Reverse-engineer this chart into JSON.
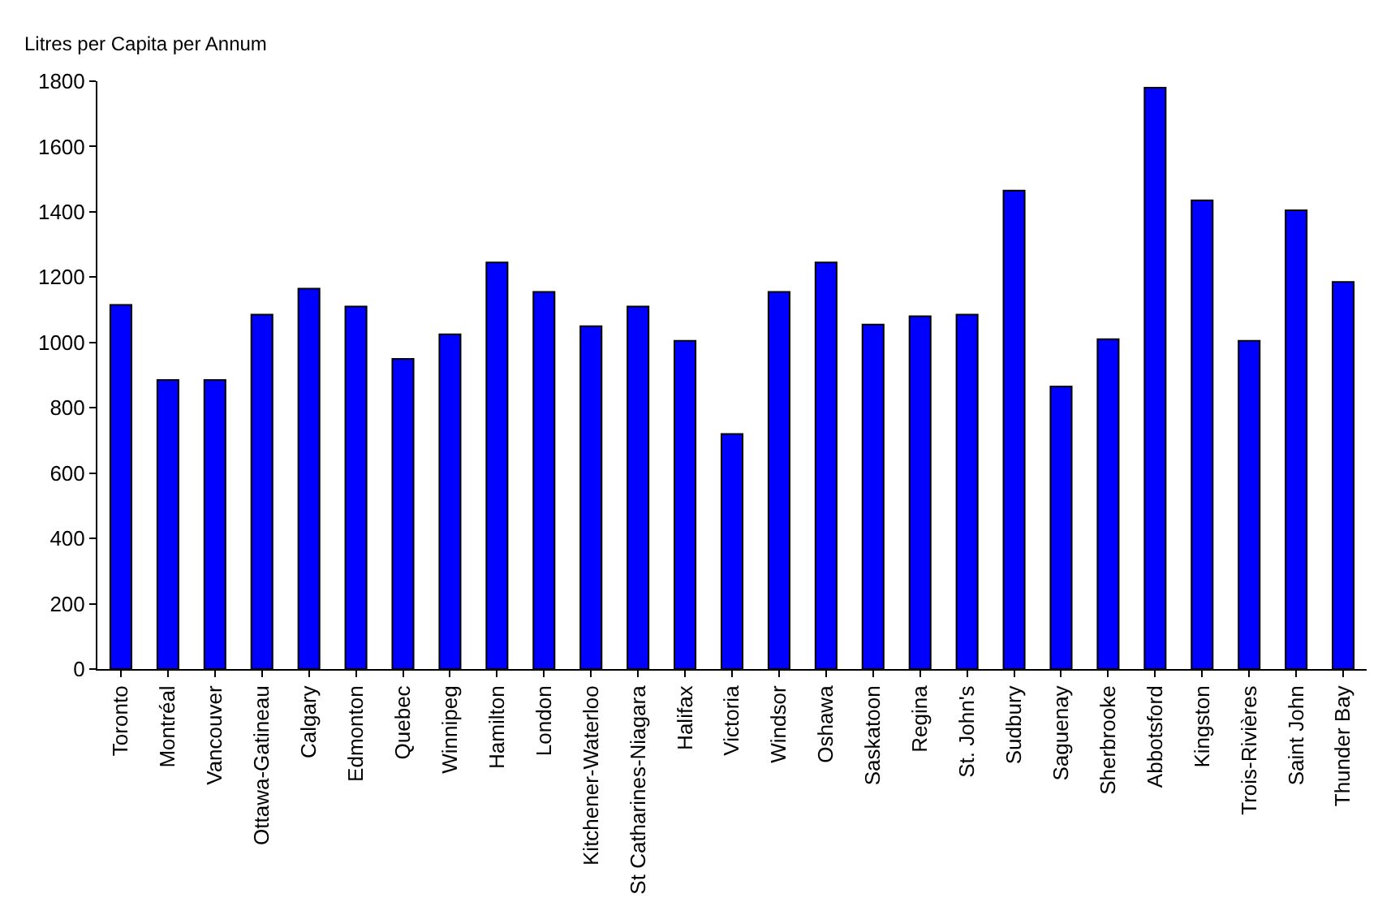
{
  "chart_data": {
    "type": "bar",
    "ylabel": "Litres per Capita per Annum",
    "categories": [
      "Toronto",
      "Montréal",
      "Vancouver",
      "Ottawa-Gatineau",
      "Calgary",
      "Edmonton",
      "Quebec",
      "Winnipeg",
      "Hamilton",
      "London",
      "Kitchener-Waterloo",
      "St Catharines-Niagara",
      "Halifax",
      "Victoria",
      "Windsor",
      "Oshawa",
      "Saskatoon",
      "Regina",
      "St. John's",
      "Sudbury",
      "Saguenay",
      "Sherbrooke",
      "Abbotsford",
      "Kingston",
      "Trois-Rivières",
      "Saint John",
      "Thunder Bay"
    ],
    "values": [
      1115,
      885,
      885,
      1085,
      1165,
      1110,
      950,
      1025,
      1245,
      1155,
      1050,
      1110,
      1005,
      720,
      1155,
      1245,
      1055,
      1080,
      1085,
      1465,
      865,
      1010,
      1780,
      1435,
      1005,
      1405,
      1185
    ],
    "color": "#0000ff",
    "ylim": [
      0,
      1800
    ],
    "yticks": [
      0,
      200,
      400,
      600,
      800,
      1000,
      1200,
      1400,
      1600,
      1800
    ],
    "grid": false
  }
}
